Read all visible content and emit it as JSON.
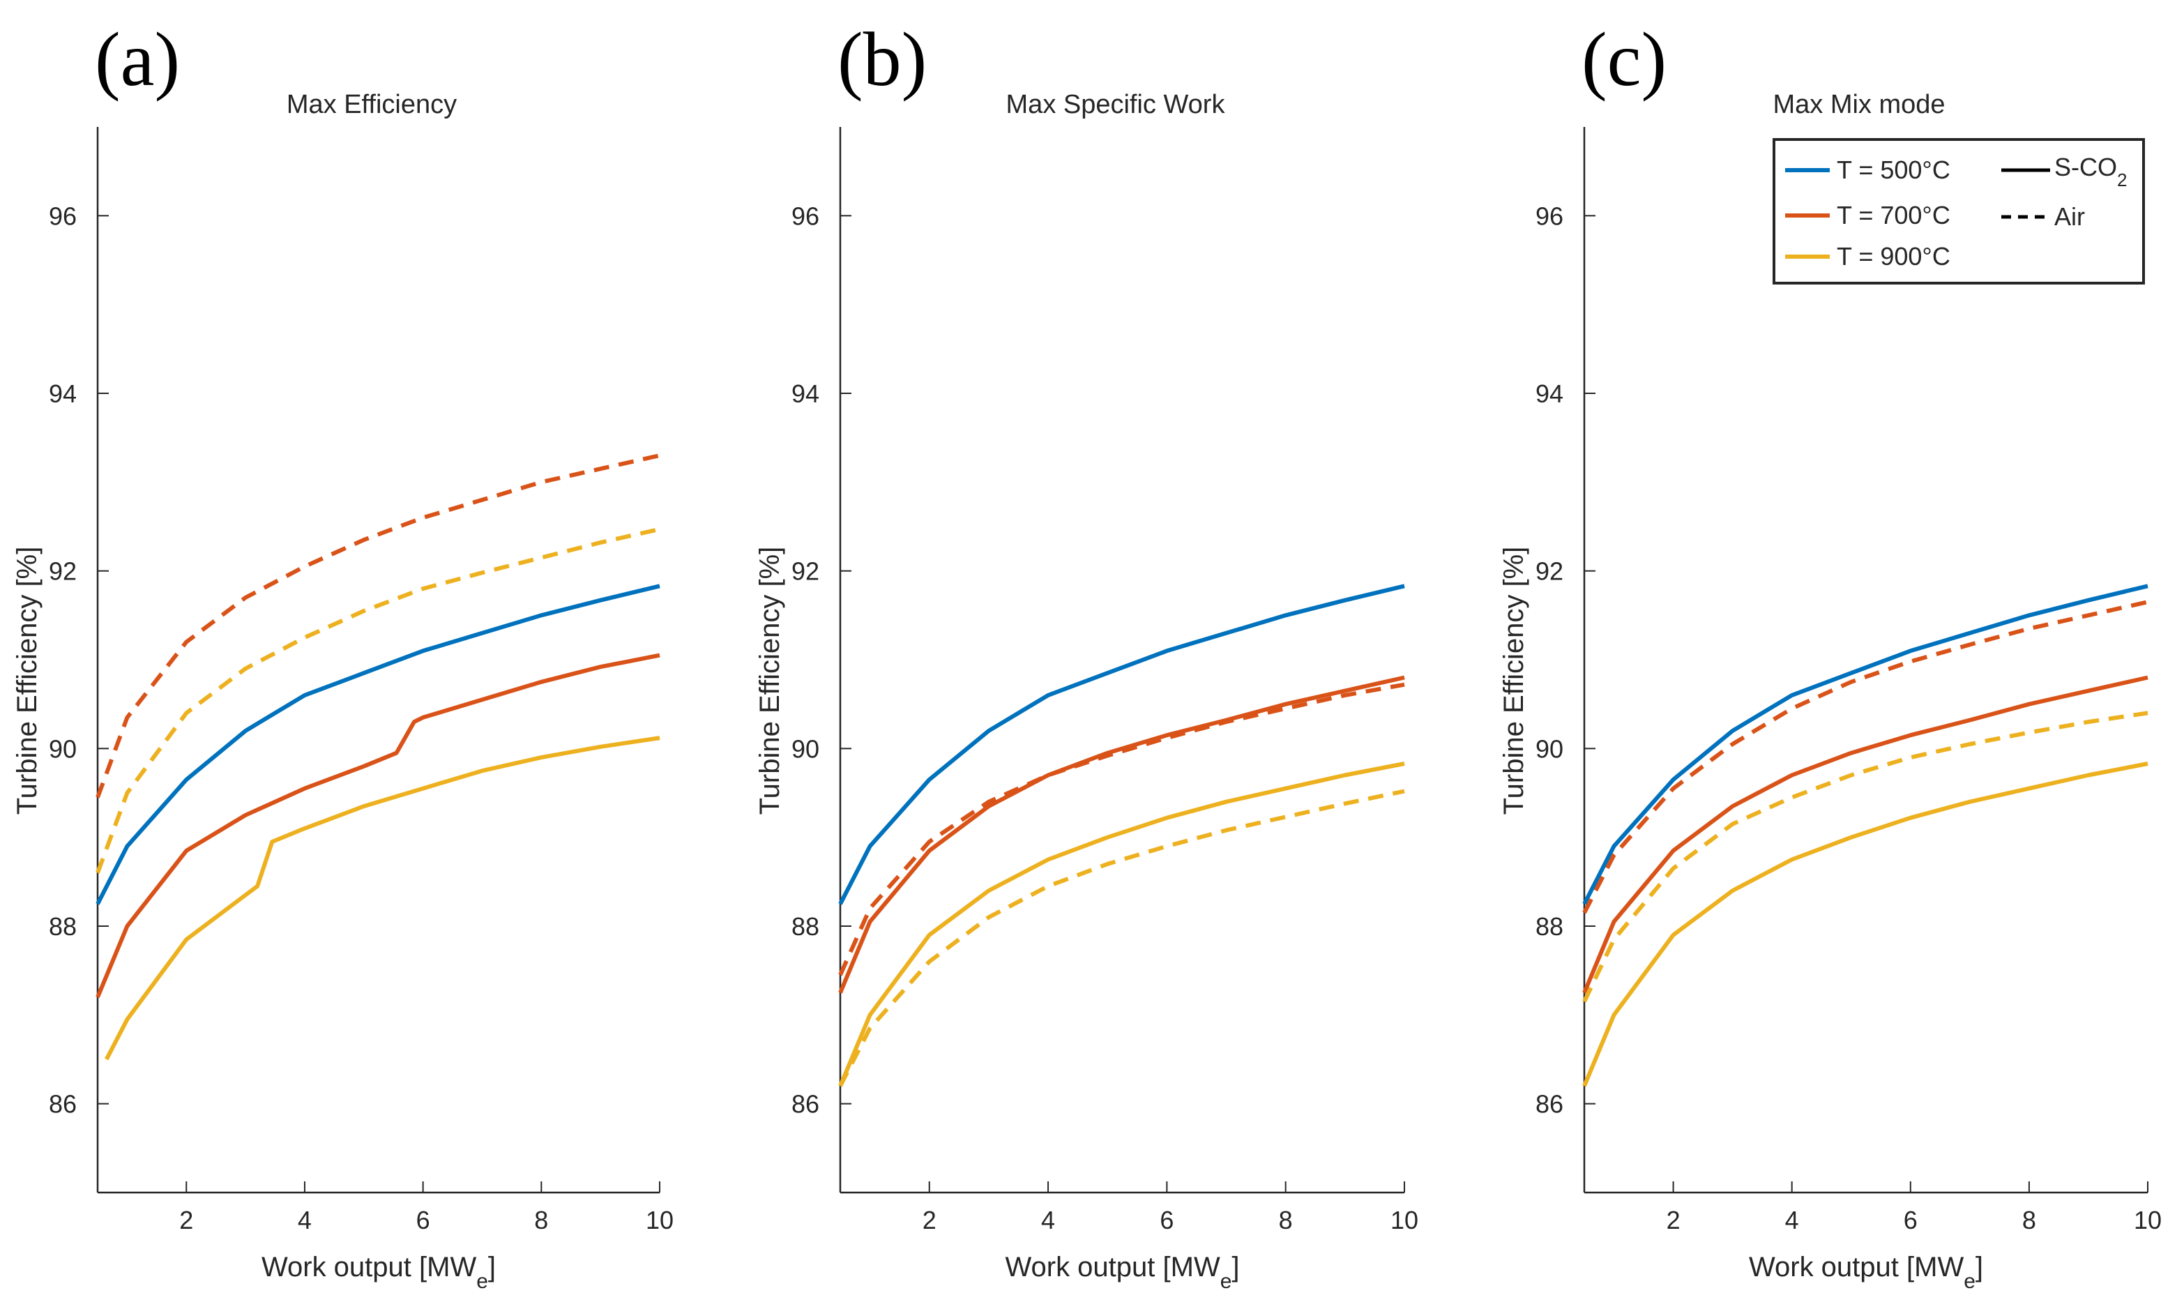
{
  "colors": {
    "t500": "#0072BD",
    "t700": "#D95319",
    "t900": "#EDB120",
    "axis": "#262626"
  },
  "legend": {
    "entries": [
      {
        "label": "T = 500°C",
        "color": "#0072BD"
      },
      {
        "label": "T = 700°C",
        "color": "#D95319"
      },
      {
        "label": "T = 900°C",
        "color": "#EDB120"
      }
    ],
    "style_solid": "S-CO2",
    "style_dashed": "Air"
  },
  "chart_data": [
    {
      "type": "line",
      "panel_label": "(a)",
      "title": "Max Efficiency",
      "xlabel": "Work output [MWe]",
      "ylabel": "Turbine Efficiency [%]",
      "xlim": [
        0.5,
        10
      ],
      "ylim": [
        85,
        97
      ],
      "xticks": [
        2,
        4,
        6,
        8,
        10
      ],
      "yticks": [
        86,
        88,
        90,
        92,
        94,
        96
      ],
      "series": [
        {
          "name": "T = 500°C S-CO2",
          "color": "#0072BD",
          "style": "solid",
          "x": [
            0.5,
            1,
            2,
            3,
            4,
            5,
            6,
            7,
            8,
            9,
            10
          ],
          "y": [
            88.25,
            88.9,
            89.65,
            90.2,
            90.6,
            90.85,
            91.1,
            91.3,
            91.5,
            91.67,
            91.83
          ]
        },
        {
          "name": "T = 700°C S-CO2",
          "color": "#D95319",
          "style": "solid",
          "x": [
            0.5,
            1,
            2,
            3,
            4,
            5,
            5.55,
            5.85,
            6,
            7,
            8,
            9,
            10
          ],
          "y": [
            87.2,
            88.0,
            88.85,
            89.25,
            89.55,
            89.8,
            89.95,
            90.3,
            90.35,
            90.55,
            90.75,
            90.92,
            91.05
          ]
        },
        {
          "name": "T = 900°C S-CO2",
          "color": "#EDB120",
          "style": "solid",
          "x": [
            0.65,
            1,
            2,
            3,
            3.2,
            3.45,
            4,
            5,
            6,
            7,
            8,
            9,
            10
          ],
          "y": [
            86.5,
            86.95,
            87.85,
            88.35,
            88.45,
            88.95,
            89.1,
            89.35,
            89.55,
            89.75,
            89.9,
            90.02,
            90.12
          ]
        },
        {
          "name": "T = 700°C Air",
          "color": "#D95319",
          "style": "dashed",
          "x": [
            0.5,
            1,
            2,
            3,
            4,
            5,
            6,
            7,
            8,
            9,
            10
          ],
          "y": [
            89.45,
            90.35,
            91.2,
            91.7,
            92.05,
            92.35,
            92.6,
            92.8,
            93.0,
            93.15,
            93.3
          ]
        },
        {
          "name": "T = 900°C Air",
          "color": "#EDB120",
          "style": "dashed",
          "x": [
            0.5,
            1,
            2,
            3,
            4,
            5,
            6,
            7,
            8,
            9,
            10
          ],
          "y": [
            88.6,
            89.5,
            90.4,
            90.9,
            91.25,
            91.55,
            91.8,
            91.98,
            92.15,
            92.32,
            92.47
          ]
        }
      ]
    },
    {
      "type": "line",
      "panel_label": "(b)",
      "title": "Max Specific Work",
      "xlabel": "Work output [MWe]",
      "ylabel": "Turbine Efficiency [%]",
      "xlim": [
        0.5,
        10
      ],
      "ylim": [
        85,
        97
      ],
      "xticks": [
        2,
        4,
        6,
        8,
        10
      ],
      "yticks": [
        86,
        88,
        90,
        92,
        94,
        96
      ],
      "series": [
        {
          "name": "T = 500°C S-CO2",
          "color": "#0072BD",
          "style": "solid",
          "x": [
            0.5,
            1,
            2,
            3,
            4,
            5,
            6,
            7,
            8,
            9,
            10
          ],
          "y": [
            88.25,
            88.9,
            89.65,
            90.2,
            90.6,
            90.85,
            91.1,
            91.3,
            91.5,
            91.67,
            91.83
          ]
        },
        {
          "name": "T = 700°C S-CO2",
          "color": "#D95319",
          "style": "solid",
          "x": [
            0.5,
            1,
            2,
            3,
            4,
            5,
            6,
            7,
            8,
            9,
            10
          ],
          "y": [
            87.25,
            88.05,
            88.85,
            89.35,
            89.7,
            89.95,
            90.15,
            90.32,
            90.5,
            90.65,
            90.8
          ]
        },
        {
          "name": "T = 900°C S-CO2",
          "color": "#EDB120",
          "style": "solid",
          "x": [
            0.5,
            1,
            2,
            3,
            4,
            5,
            6,
            7,
            8,
            9,
            10
          ],
          "y": [
            86.2,
            87.0,
            87.9,
            88.4,
            88.75,
            89.0,
            89.22,
            89.4,
            89.55,
            89.7,
            89.83
          ]
        },
        {
          "name": "T = 700°C Air",
          "color": "#D95319",
          "style": "dashed",
          "x": [
            0.5,
            1,
            2,
            3,
            4,
            5,
            6,
            7,
            8,
            9,
            10
          ],
          "y": [
            87.45,
            88.2,
            88.95,
            89.4,
            89.7,
            89.92,
            90.12,
            90.3,
            90.45,
            90.6,
            90.72
          ]
        },
        {
          "name": "T = 900°C Air",
          "color": "#EDB120",
          "style": "dashed",
          "x": [
            0.5,
            1,
            2,
            3,
            4,
            5,
            6,
            7,
            8,
            9,
            10
          ],
          "y": [
            86.2,
            86.85,
            87.6,
            88.1,
            88.45,
            88.7,
            88.9,
            89.08,
            89.23,
            89.38,
            89.52
          ]
        }
      ]
    },
    {
      "type": "line",
      "panel_label": "(c)",
      "title": "Max Mix mode",
      "xlabel": "Work output [MWe]",
      "ylabel": "Turbine Efficiency [%]",
      "xlim": [
        0.5,
        10
      ],
      "ylim": [
        85,
        97
      ],
      "xticks": [
        2,
        4,
        6,
        8,
        10
      ],
      "yticks": [
        86,
        88,
        90,
        92,
        94,
        96
      ],
      "series": [
        {
          "name": "T = 500°C S-CO2",
          "color": "#0072BD",
          "style": "solid",
          "x": [
            0.5,
            1,
            2,
            3,
            4,
            5,
            6,
            7,
            8,
            9,
            10
          ],
          "y": [
            88.25,
            88.9,
            89.65,
            90.2,
            90.6,
            90.85,
            91.1,
            91.3,
            91.5,
            91.67,
            91.83
          ]
        },
        {
          "name": "T = 700°C S-CO2",
          "color": "#D95319",
          "style": "solid",
          "x": [
            0.5,
            1,
            2,
            3,
            4,
            5,
            6,
            7,
            8,
            9,
            10
          ],
          "y": [
            87.25,
            88.05,
            88.85,
            89.35,
            89.7,
            89.95,
            90.15,
            90.32,
            90.5,
            90.65,
            90.8
          ]
        },
        {
          "name": "T = 900°C S-CO2",
          "color": "#EDB120",
          "style": "solid",
          "x": [
            0.5,
            1,
            2,
            3,
            4,
            5,
            6,
            7,
            8,
            9,
            10
          ],
          "y": [
            86.2,
            87.0,
            87.9,
            88.4,
            88.75,
            89.0,
            89.22,
            89.4,
            89.55,
            89.7,
            89.83
          ]
        },
        {
          "name": "T = 700°C Air",
          "color": "#D95319",
          "style": "dashed",
          "x": [
            0.5,
            1,
            2,
            3,
            4,
            5,
            6,
            7,
            8,
            9,
            10
          ],
          "y": [
            88.15,
            88.8,
            89.55,
            90.05,
            90.45,
            90.75,
            90.98,
            91.17,
            91.35,
            91.5,
            91.65
          ]
        },
        {
          "name": "T = 900°C Air",
          "color": "#EDB120",
          "style": "dashed",
          "x": [
            0.5,
            1,
            2,
            3,
            4,
            5,
            6,
            7,
            8,
            9,
            10
          ],
          "y": [
            87.15,
            87.85,
            88.65,
            89.15,
            89.45,
            89.7,
            89.9,
            90.05,
            90.18,
            90.3,
            90.4
          ]
        }
      ]
    }
  ]
}
